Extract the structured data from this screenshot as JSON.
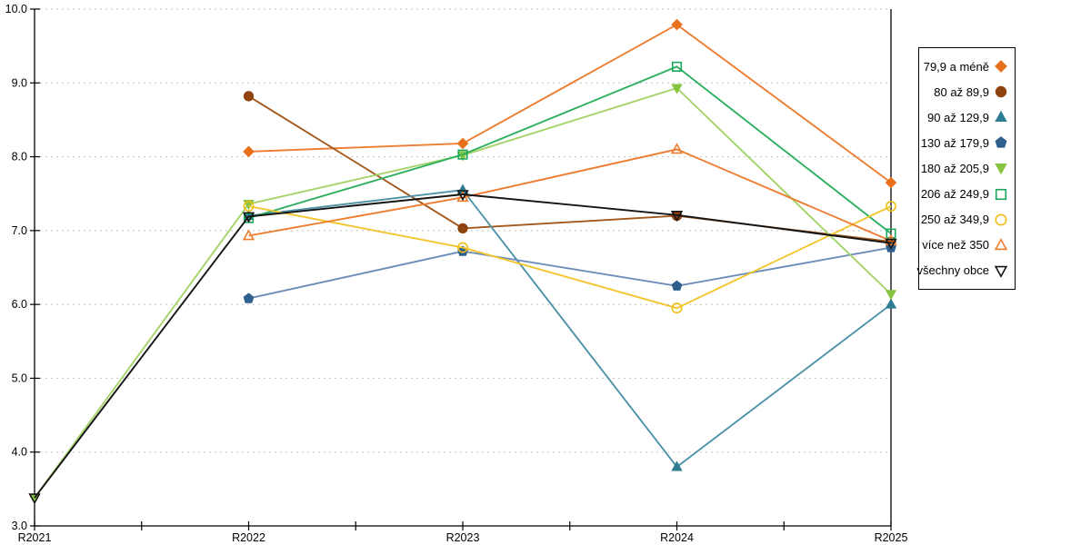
{
  "chart_data": {
    "type": "line",
    "title": "",
    "xlabel": "",
    "ylabel": "",
    "categories": [
      "R2021",
      "R2022",
      "R2023",
      "R2024",
      "R2025"
    ],
    "yticks": [
      3.0,
      4.0,
      5.0,
      6.0,
      7.0,
      8.0,
      9.0,
      10.0
    ],
    "ytick_labels": [
      "3.0",
      "4.0",
      "5.0",
      "6.0",
      "7.0",
      "8.0",
      "9.0",
      "10.0"
    ],
    "ylim": [
      3.0,
      10.0
    ],
    "grid": "horizontal-dashed",
    "grid_color": "#c3c3c3",
    "axis_color": "#000000",
    "legend_position": "right",
    "series": [
      {
        "name": "79,9 a méně",
        "marker": "diamond",
        "filled": true,
        "line_color": "#ED7D31",
        "marker_color": "#E8701A",
        "values": [
          null,
          8.07,
          8.18,
          9.79,
          7.65
        ]
      },
      {
        "name": "80 až 89,9",
        "marker": "circle",
        "filled": true,
        "line_color": "#A2571B",
        "marker_color": "#8F430E",
        "values": [
          null,
          8.82,
          7.03,
          7.2,
          6.85
        ]
      },
      {
        "name": "90 až 129,9",
        "marker": "triangle-up",
        "filled": true,
        "line_color": "#4E93A8",
        "marker_color": "#2F7C93",
        "values": [
          null,
          7.2,
          7.55,
          3.8,
          6.0
        ]
      },
      {
        "name": "130 až 179,9",
        "marker": "pentagon",
        "filled": true,
        "line_color": "#6C8EB8",
        "marker_color": "#2F5F8D",
        "values": [
          null,
          6.08,
          6.72,
          6.25,
          6.77
        ]
      },
      {
        "name": "180 až 205,9",
        "marker": "triangle-down",
        "filled": true,
        "line_color": "#A6D36A",
        "marker_color": "#86C440",
        "values": [
          3.38,
          7.36,
          8.02,
          8.93,
          6.14
        ]
      },
      {
        "name": "206 až 249,9",
        "marker": "square",
        "filled": false,
        "line_color": "#2EB060",
        "marker_color": "#1CA85C",
        "values": [
          null,
          7.17,
          8.03,
          9.22,
          6.96
        ]
      },
      {
        "name": "250 až 349,9",
        "marker": "circle",
        "filled": false,
        "line_color": "#F3C52F",
        "marker_color": "#EFBE14",
        "values": [
          null,
          7.33,
          6.77,
          5.95,
          7.33
        ]
      },
      {
        "name": "více než 350",
        "marker": "triangle-up",
        "filled": false,
        "line_color": "#ED7D31",
        "marker_color": "#ED7D31",
        "values": [
          null,
          6.93,
          7.45,
          8.1,
          6.86
        ]
      },
      {
        "name": "všechny obce",
        "marker": "triangle-down",
        "filled": false,
        "line_color": "#141414",
        "marker_color": "#141414",
        "values": [
          3.38,
          7.19,
          7.49,
          7.21,
          6.83
        ]
      }
    ]
  }
}
